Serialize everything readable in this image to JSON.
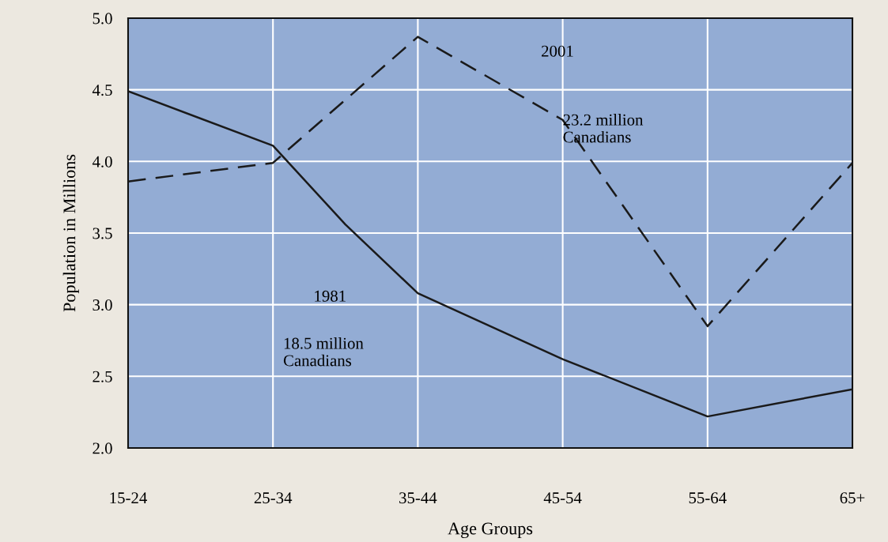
{
  "chart_data": {
    "type": "line",
    "xlabel": "Age Groups",
    "ylabel": "Population in Millions",
    "categories": [
      "15-24",
      null,
      "25-34",
      null,
      "35-44",
      null,
      "45-54",
      null,
      "55-64",
      null,
      "65+"
    ],
    "ylim": [
      2.0,
      5.0
    ],
    "yticks": [
      {
        "value": 2.0,
        "label": "2.0"
      },
      {
        "value": 2.5,
        "label": "2.5"
      },
      {
        "value": 3.0,
        "label": "3.0"
      },
      {
        "value": 3.5,
        "label": "3.5"
      },
      {
        "value": 4.0,
        "label": "4.0"
      },
      {
        "value": 4.5,
        "label": "4.5"
      },
      {
        "value": 5.0,
        "label": "5.0"
      }
    ],
    "grid": true,
    "marker": "none",
    "series": [
      {
        "color": "#1a1a1a",
        "line_style": "solid",
        "values": [
          4.49,
          null,
          4.11,
          3.56,
          3.08,
          null,
          2.62,
          null,
          2.22,
          null,
          2.41
        ]
      },
      {
        "color": "#1a1a1a",
        "line_style": "dashed",
        "values": [
          3.86,
          null,
          3.99,
          null,
          4.87,
          null,
          4.29,
          null,
          2.85,
          null,
          3.99
        ]
      }
    ],
    "annotations": [
      "2001",
      "23.2 million\nCanadians",
      "1981",
      "18.5 million\nCanadians"
    ]
  }
}
